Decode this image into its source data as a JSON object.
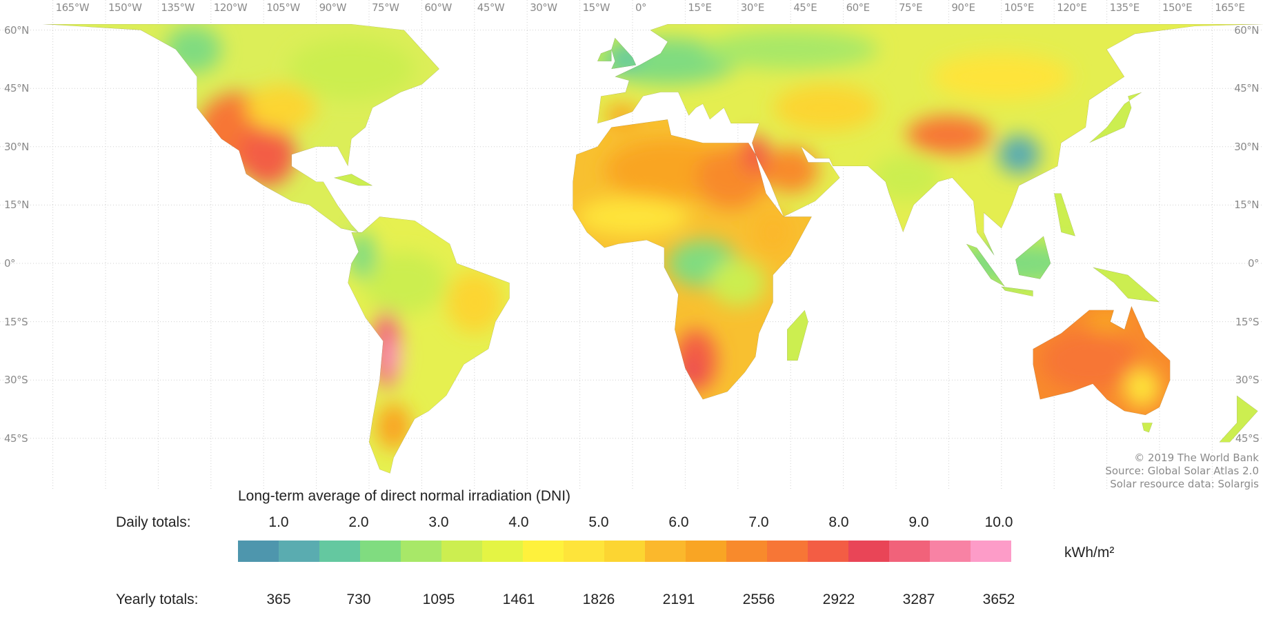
{
  "map": {
    "longitude_labels": [
      "165°W",
      "150°W",
      "135°W",
      "120°W",
      "105°W",
      "90°W",
      "75°W",
      "60°W",
      "45°W",
      "30°W",
      "15°W",
      "0°",
      "15°E",
      "30°E",
      "45°E",
      "60°E",
      "75°E",
      "90°E",
      "105°E",
      "120°E",
      "135°E",
      "150°E",
      "165°E"
    ],
    "latitude_labels": [
      "60°N",
      "45°N",
      "30°N",
      "15°N",
      "0°",
      "15°S",
      "30°S",
      "45°S"
    ],
    "credits": [
      "© 2019 The World Bank",
      "Source: Global Solar Atlas 2.0",
      "Solar resource data: Solargis"
    ]
  },
  "legend": {
    "title": "Long-term average of direct normal irradiation (DNI)",
    "daily_label": "Daily totals:",
    "yearly_label": "Yearly totals:",
    "daily_values": [
      "1.0",
      "2.0",
      "3.0",
      "4.0",
      "5.0",
      "6.0",
      "7.0",
      "8.0",
      "9.0",
      "10.0"
    ],
    "yearly_values": [
      "365",
      "730",
      "1095",
      "1461",
      "1826",
      "2191",
      "2556",
      "2922",
      "3287",
      "3652"
    ],
    "unit": "kWh/m²",
    "colors": [
      "#4e96ad",
      "#5aacb0",
      "#64c8a0",
      "#80dc80",
      "#a8e868",
      "#ccee50",
      "#e4f444",
      "#fef13c",
      "#fee43a",
      "#fcd532",
      "#fbb82c",
      "#f9a524",
      "#f88a2c",
      "#f77636",
      "#f35d44",
      "#e94557",
      "#f1627a",
      "#f882a4",
      "#fd9cc8"
    ]
  }
}
